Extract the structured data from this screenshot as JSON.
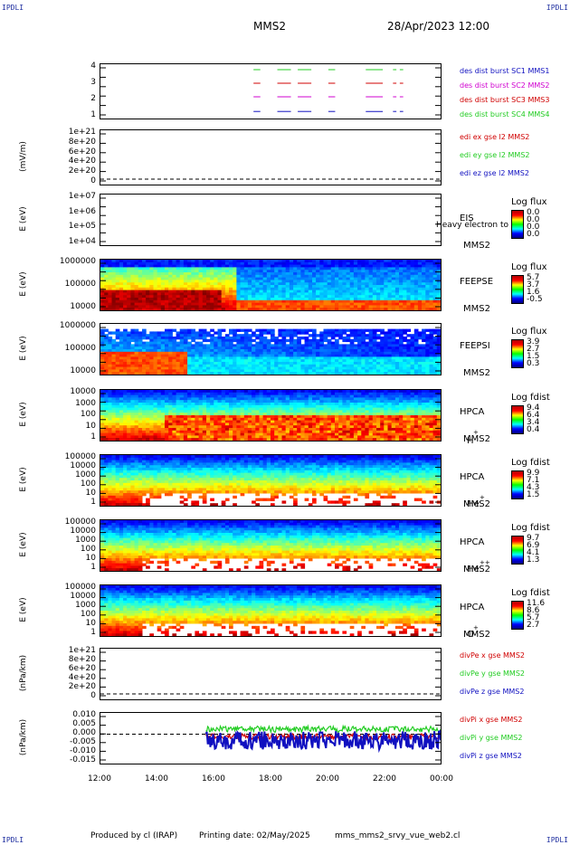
{
  "corner_labels": {
    "tl": "IPDLI",
    "tr": "IPDLI",
    "bl": "IPDLI",
    "br": "IPDLI"
  },
  "header": {
    "spacecraft": "MMS2",
    "datetime": "28/Apr/2023 12:00"
  },
  "footer": {
    "producer": "Produced by cl (IRAP)",
    "printing": "Printing date: 02/May/2025",
    "script": "mms_mms2_srvy_vue_web2.cl"
  },
  "x_axis": {
    "ticks": [
      "12:00",
      "14:00",
      "16:00",
      "18:00",
      "20:00",
      "22:00",
      "00:00"
    ]
  },
  "colors": {
    "red": "#d00000",
    "green": "#22cc22",
    "blue": "#1010c0",
    "magenta": "#d000d0"
  },
  "chart_data": [
    {
      "type": "line",
      "id": "burst",
      "ylabel": "",
      "yticks": [
        "4",
        "3",
        "2",
        "1"
      ],
      "series": [
        {
          "name": "des dist burst SC1 MMS1",
          "color": "#1010c0"
        },
        {
          "name": "des dist burst SC2 MMS2",
          "color": "#d000d0"
        },
        {
          "name": "des dist burst SC3 MMS3",
          "color": "#d00000"
        },
        {
          "name": "des dist burst SC4 MMS4",
          "color": "#22cc22"
        }
      ]
    },
    {
      "type": "line",
      "id": "edi",
      "ylabel": "(mV/m)",
      "yticks": [
        "1e+21",
        "8e+20",
        "6e+20",
        "4e+20",
        "2e+20",
        "0"
      ],
      "series": [
        {
          "name": "edi ex gse l2 MMS2",
          "color": "#d00000"
        },
        {
          "name": "edi ey gse l2 MMS2",
          "color": "#22cc22"
        },
        {
          "name": "edi ez gse l2 MMS2",
          "color": "#1010c0"
        }
      ]
    },
    {
      "type": "heatmap",
      "id": "eis",
      "ylabel": "E (eV)",
      "yticks": [
        "1e+07",
        "1e+06",
        "1e+05",
        "1e+04"
      ],
      "instrument": "EIS",
      "sc": "MMS2",
      "note": "Heavy electron to",
      "cbar_title": "Log flux",
      "cbar_values": [
        "0.0",
        "0.0",
        "0.0",
        "0.0"
      ]
    },
    {
      "type": "heatmap",
      "id": "feepse",
      "ylabel": "E (eV)",
      "yticks": [
        "1000000",
        "100000",
        "10000"
      ],
      "instrument": "FEEPSE",
      "sc": "MMS2",
      "cbar_title": "Log flux",
      "cbar_values": [
        "5.7",
        "3.7",
        "1.6",
        "-0.5"
      ]
    },
    {
      "type": "heatmap",
      "id": "feepsi",
      "ylabel": "E (eV)",
      "yticks": [
        "1000000",
        "100000",
        "10000"
      ],
      "instrument": "FEEPSI",
      "sc": "MMS2",
      "cbar_title": "Log flux",
      "cbar_values": [
        "3.9",
        "2.7",
        "1.5",
        "0.3"
      ]
    },
    {
      "type": "heatmap",
      "id": "hpca_h",
      "ylabel": "E (eV)",
      "yticks": [
        "10000",
        "1000",
        "100",
        "10",
        "1"
      ],
      "instrument": "HPCA",
      "sc": "MMS2",
      "species": "H",
      "charge": "+",
      "cbar_title": "Log fdist",
      "cbar_values": [
        "9.4",
        "6.4",
        "3.4",
        "0.4"
      ]
    },
    {
      "type": "heatmap",
      "id": "hpca_he",
      "ylabel": "E (eV)",
      "yticks": [
        "100000",
        "10000",
        "1000",
        "100",
        "10",
        "1"
      ],
      "instrument": "HPCA",
      "sc": "MMS2",
      "species": "He",
      "charge": "+",
      "cbar_title": "Log fdist",
      "cbar_values": [
        "9.9",
        "7.1",
        "4.3",
        "1.5"
      ]
    },
    {
      "type": "heatmap",
      "id": "hpca_hepp",
      "ylabel": "E (eV)",
      "yticks": [
        "100000",
        "10000",
        "1000",
        "100",
        "10",
        "1"
      ],
      "instrument": "HPCA",
      "sc": "MMS2",
      "species": "He",
      "charge": "++",
      "cbar_title": "Log fdist",
      "cbar_values": [
        "9.7",
        "6.9",
        "4.1",
        "1.3"
      ]
    },
    {
      "type": "heatmap",
      "id": "hpca_o",
      "ylabel": "E (eV)",
      "yticks": [
        "100000",
        "10000",
        "1000",
        "100",
        "10",
        "1"
      ],
      "instrument": "HPCA",
      "sc": "MMS2",
      "species": "O",
      "charge": "+",
      "cbar_title": "Log fdist",
      "cbar_values": [
        "11.6",
        "8.6",
        "5.7",
        "2.7"
      ]
    },
    {
      "type": "line",
      "id": "divpe",
      "ylabel": "(nPa/km)",
      "yticks": [
        "1e+21",
        "8e+20",
        "6e+20",
        "4e+20",
        "2e+20",
        "0"
      ],
      "series": [
        {
          "name": "divPe x gse MMS2",
          "color": "#d00000"
        },
        {
          "name": "divPe y gse MMS2",
          "color": "#22cc22"
        },
        {
          "name": "divPe z gse MMS2",
          "color": "#1010c0"
        }
      ]
    },
    {
      "type": "line",
      "id": "divpi",
      "ylabel": "(nPa/km)",
      "yticks": [
        "0.010",
        "0.005",
        "0.000",
        "-0.005",
        "-0.010",
        "-0.015"
      ],
      "series": [
        {
          "name": "divPi x gse MMS2",
          "color": "#d00000"
        },
        {
          "name": "divPi y gse MMS2",
          "color": "#22cc22"
        },
        {
          "name": "divPi z gse MMS2",
          "color": "#1010c0"
        }
      ]
    }
  ]
}
